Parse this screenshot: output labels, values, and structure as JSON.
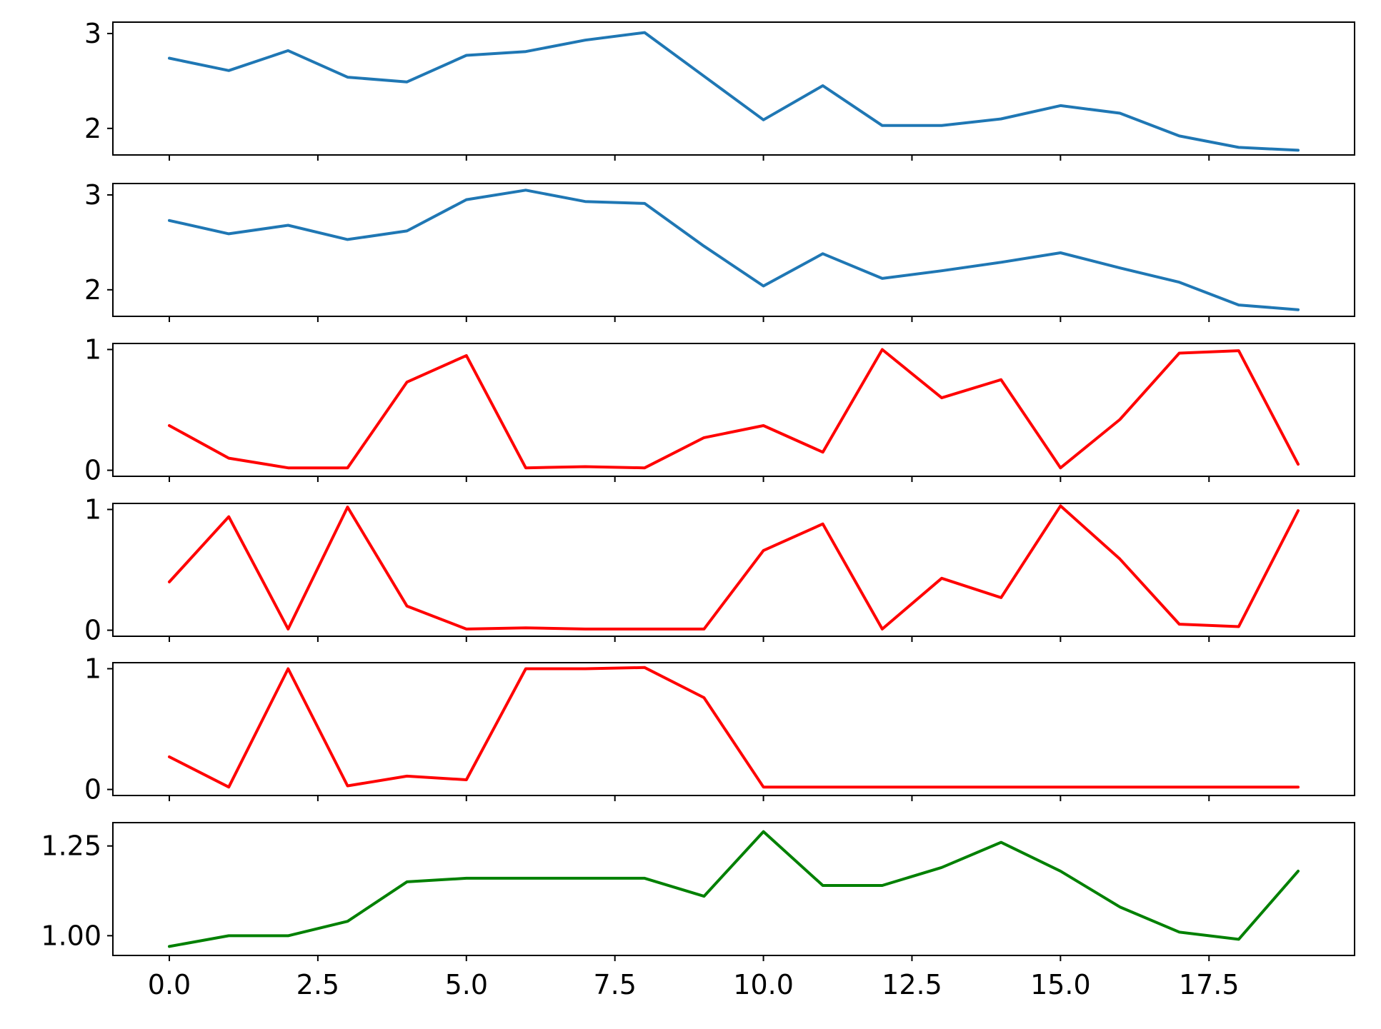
{
  "chart_data": [
    {
      "type": "line",
      "color": "#1f77b4",
      "x": [
        0,
        1,
        2,
        3,
        4,
        5,
        6,
        7,
        8,
        9,
        10,
        11,
        12,
        13,
        14,
        15,
        16,
        17,
        18,
        19
      ],
      "values": [
        2.74,
        2.61,
        2.82,
        2.54,
        2.49,
        2.77,
        2.81,
        2.93,
        3.01,
        2.55,
        2.09,
        2.45,
        2.03,
        2.03,
        2.1,
        2.24,
        2.16,
        1.92,
        1.8,
        1.77
      ],
      "ylim": [
        1.72,
        3.12
      ],
      "yticks": [
        2,
        3
      ],
      "ytick_labels": [
        "2",
        "3"
      ]
    },
    {
      "type": "line",
      "color": "#1f77b4",
      "x": [
        0,
        1,
        2,
        3,
        4,
        5,
        6,
        7,
        8,
        9,
        10,
        11,
        12,
        13,
        14,
        15,
        16,
        17,
        18,
        19
      ],
      "values": [
        2.73,
        2.59,
        2.68,
        2.53,
        2.62,
        2.95,
        3.05,
        2.93,
        2.91,
        2.46,
        2.04,
        2.38,
        2.12,
        2.2,
        2.29,
        2.39,
        2.23,
        2.08,
        1.84,
        1.79
      ],
      "ylim": [
        1.72,
        3.12
      ],
      "yticks": [
        2,
        3
      ],
      "ytick_labels": [
        "2",
        "3"
      ]
    },
    {
      "type": "line",
      "color": "#ff0000",
      "x": [
        0,
        1,
        2,
        3,
        4,
        5,
        6,
        7,
        8,
        9,
        10,
        11,
        12,
        13,
        14,
        15,
        16,
        17,
        18,
        19
      ],
      "values": [
        0.37,
        0.1,
        0.02,
        0.02,
        0.73,
        0.95,
        0.02,
        0.03,
        0.02,
        0.27,
        0.37,
        0.15,
        1.0,
        0.6,
        0.75,
        0.02,
        0.42,
        0.97,
        0.99,
        0.05
      ],
      "ylim": [
        -0.05,
        1.05
      ],
      "yticks": [
        0,
        1
      ],
      "ytick_labels": [
        "0",
        "1"
      ]
    },
    {
      "type": "line",
      "color": "#ff0000",
      "x": [
        0,
        1,
        2,
        3,
        4,
        5,
        6,
        7,
        8,
        9,
        10,
        11,
        12,
        13,
        14,
        15,
        16,
        17,
        18,
        19
      ],
      "values": [
        0.4,
        0.94,
        0.01,
        1.02,
        0.2,
        0.01,
        0.02,
        0.01,
        0.01,
        0.01,
        0.66,
        0.88,
        0.01,
        0.43,
        0.27,
        1.03,
        0.59,
        0.05,
        0.03,
        0.99
      ],
      "ylim": [
        -0.05,
        1.05
      ],
      "yticks": [
        0,
        1
      ],
      "ytick_labels": [
        "0",
        "1"
      ]
    },
    {
      "type": "line",
      "color": "#ff0000",
      "x": [
        0,
        1,
        2,
        3,
        4,
        5,
        6,
        7,
        8,
        9,
        10,
        11,
        12,
        13,
        14,
        15,
        16,
        17,
        18,
        19
      ],
      "values": [
        0.27,
        0.02,
        1.0,
        0.03,
        0.11,
        0.08,
        1.0,
        1.0,
        1.01,
        0.76,
        0.02,
        0.02,
        0.02,
        0.02,
        0.02,
        0.02,
        0.02,
        0.02,
        0.02,
        0.02
      ],
      "ylim": [
        -0.05,
        1.05
      ],
      "yticks": [
        0,
        1
      ],
      "ytick_labels": [
        "0",
        "1"
      ]
    },
    {
      "type": "line",
      "color": "#008000",
      "x": [
        0,
        1,
        2,
        3,
        4,
        5,
        6,
        7,
        8,
        9,
        10,
        11,
        12,
        13,
        14,
        15,
        16,
        17,
        18,
        19
      ],
      "values": [
        0.97,
        1.0,
        1.0,
        1.04,
        1.15,
        1.16,
        1.16,
        1.16,
        1.16,
        1.11,
        1.29,
        1.14,
        1.14,
        1.19,
        1.26,
        1.18,
        1.08,
        1.01,
        0.99,
        1.18
      ],
      "ylim": [
        0.945,
        1.315
      ],
      "yticks": [
        1.0,
        1.25
      ],
      "ytick_labels": [
        "1.00",
        "1.25"
      ]
    }
  ],
  "shared_x": {
    "xlim": [
      -0.95,
      19.95
    ],
    "xticks": [
      0,
      2.5,
      5,
      7.5,
      10,
      12.5,
      15,
      17.5
    ],
    "xtick_labels": [
      "0.0",
      "2.5",
      "5.0",
      "7.5",
      "10.0",
      "12.5",
      "15.0",
      "17.5"
    ]
  }
}
